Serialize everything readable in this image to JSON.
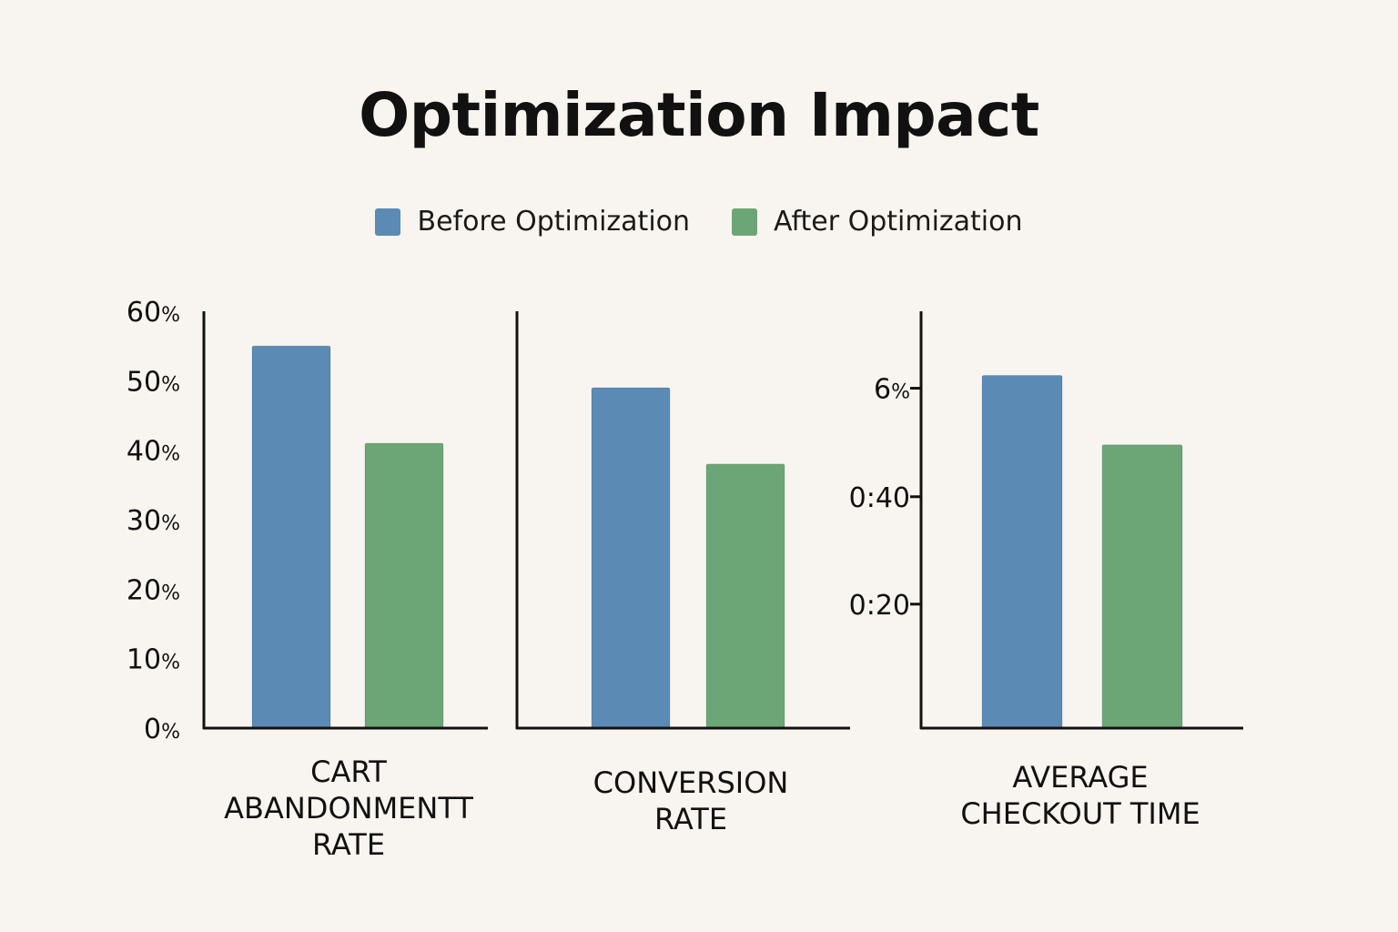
{
  "title": "Optimization Impact",
  "legend": {
    "before": "Before Optimization",
    "after": "After Optimization"
  },
  "colors": {
    "before": "#5b8bb5",
    "after": "#6ca676",
    "axis": "#111111"
  },
  "chart_data": [
    {
      "type": "bar",
      "title": "CART ABANDONMENTT RATE",
      "label_lines": [
        "CART",
        "ABANDONMENTT",
        "RATE"
      ],
      "categories": [
        "CART ABANDONMENTT RATE"
      ],
      "series": [
        {
          "name": "Before Optimization",
          "values": [
            55
          ]
        },
        {
          "name": "After Optimization",
          "values": [
            41
          ]
        }
      ],
      "ylim": [
        0,
        60
      ],
      "yticks": [
        {
          "value": 0,
          "num": "0",
          "unit": "%"
        },
        {
          "value": 10,
          "num": "10",
          "unit": "%"
        },
        {
          "value": 20,
          "num": "20",
          "unit": "%"
        },
        {
          "value": 30,
          "num": "30",
          "unit": "%"
        },
        {
          "value": 40,
          "num": "40",
          "unit": "%"
        },
        {
          "value": 50,
          "num": "50",
          "unit": "%"
        },
        {
          "value": 60,
          "num": "60",
          "unit": "%"
        }
      ]
    },
    {
      "type": "bar",
      "title": "CONVERSION RATE",
      "label_lines": [
        "CONVERSION",
        "RATE"
      ],
      "categories": [
        "CONVERSION RATE"
      ],
      "series": [
        {
          "name": "Before Optimization",
          "values": [
            49
          ]
        },
        {
          "name": "After Optimization",
          "values": [
            38
          ]
        }
      ],
      "ylim": [
        0,
        60
      ],
      "yticks": []
    },
    {
      "type": "bar",
      "title": "AVERAGE CHECKOUT TIME",
      "label_lines": [
        "AVERAGE",
        "CHECKOUT TIME"
      ],
      "categories": [
        "AVERAGE CHECKOUT TIME"
      ],
      "series": [
        {
          "name": "Before Optimization",
          "values": [
            66
          ]
        },
        {
          "name": "After Optimization",
          "values": [
            53
          ]
        }
      ],
      "ylim": [
        0,
        78
      ],
      "yticks": [
        {
          "value": 23.2,
          "num": "0:20",
          "unit": "",
          "tick": true
        },
        {
          "value": 43.3,
          "num": "0:40",
          "unit": "",
          "tick": true
        },
        {
          "value": 63.6,
          "num": "6",
          "unit": "%",
          "tick": true
        }
      ]
    }
  ]
}
